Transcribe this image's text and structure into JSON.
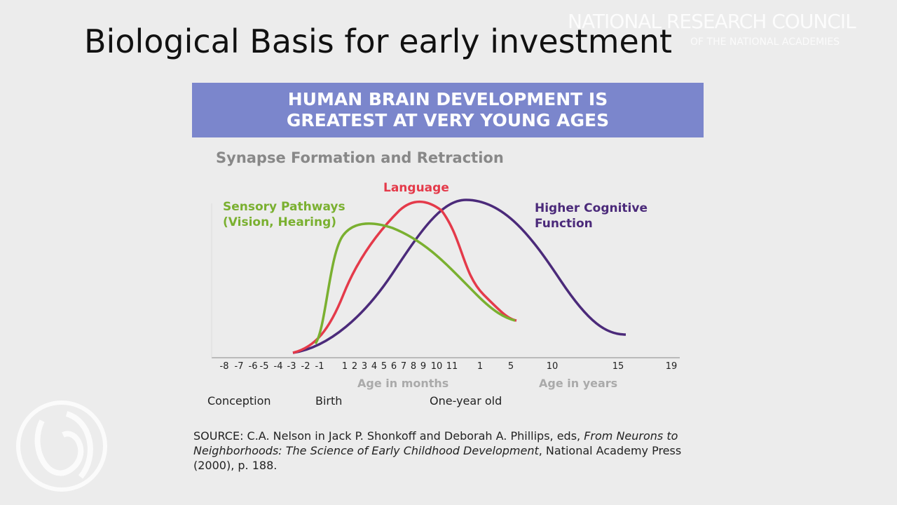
{
  "header": {
    "title": "Biological Basis for early investment",
    "watermark_line1": "NATIONAL RESEARCH COUNCIL",
    "watermark_line2": "OF THE NATIONAL ACADEMIES"
  },
  "figure": {
    "banner": [
      "HUMAN BRAIN DEVELOPMENT IS",
      "GREATEST AT VERY YOUNG AGES"
    ],
    "subtitle": "Synapse Formation and Retraction",
    "curve_labels": {
      "sensory": [
        "Sensory Pathways",
        "(Vision, Hearing)"
      ],
      "language": "Language",
      "cognitive": [
        "Higher Cognitive",
        "Function"
      ]
    },
    "x_ticks": [
      "-8",
      "-7",
      "-6",
      "-5",
      "-4",
      "-3",
      "-2",
      "-1",
      "1",
      "2",
      "3",
      "4",
      "5",
      "6",
      "7",
      "8",
      "9",
      "10",
      "11",
      "1",
      "5",
      "10",
      "15",
      "19"
    ],
    "axis_titles": [
      "Age in months",
      "Age in years"
    ],
    "milestones": [
      "Conception",
      "Birth",
      "One-year old"
    ]
  },
  "source": {
    "prefix": "SOURCE:  C.A. Nelson in Jack P. Shonkoff and Deborah A. Phillips, eds, ",
    "italic": "From Neurons to Neighborhoods: The Science of Early Childhood Development",
    "suffix": ", National Academy Press (2000), p. 188."
  }
}
